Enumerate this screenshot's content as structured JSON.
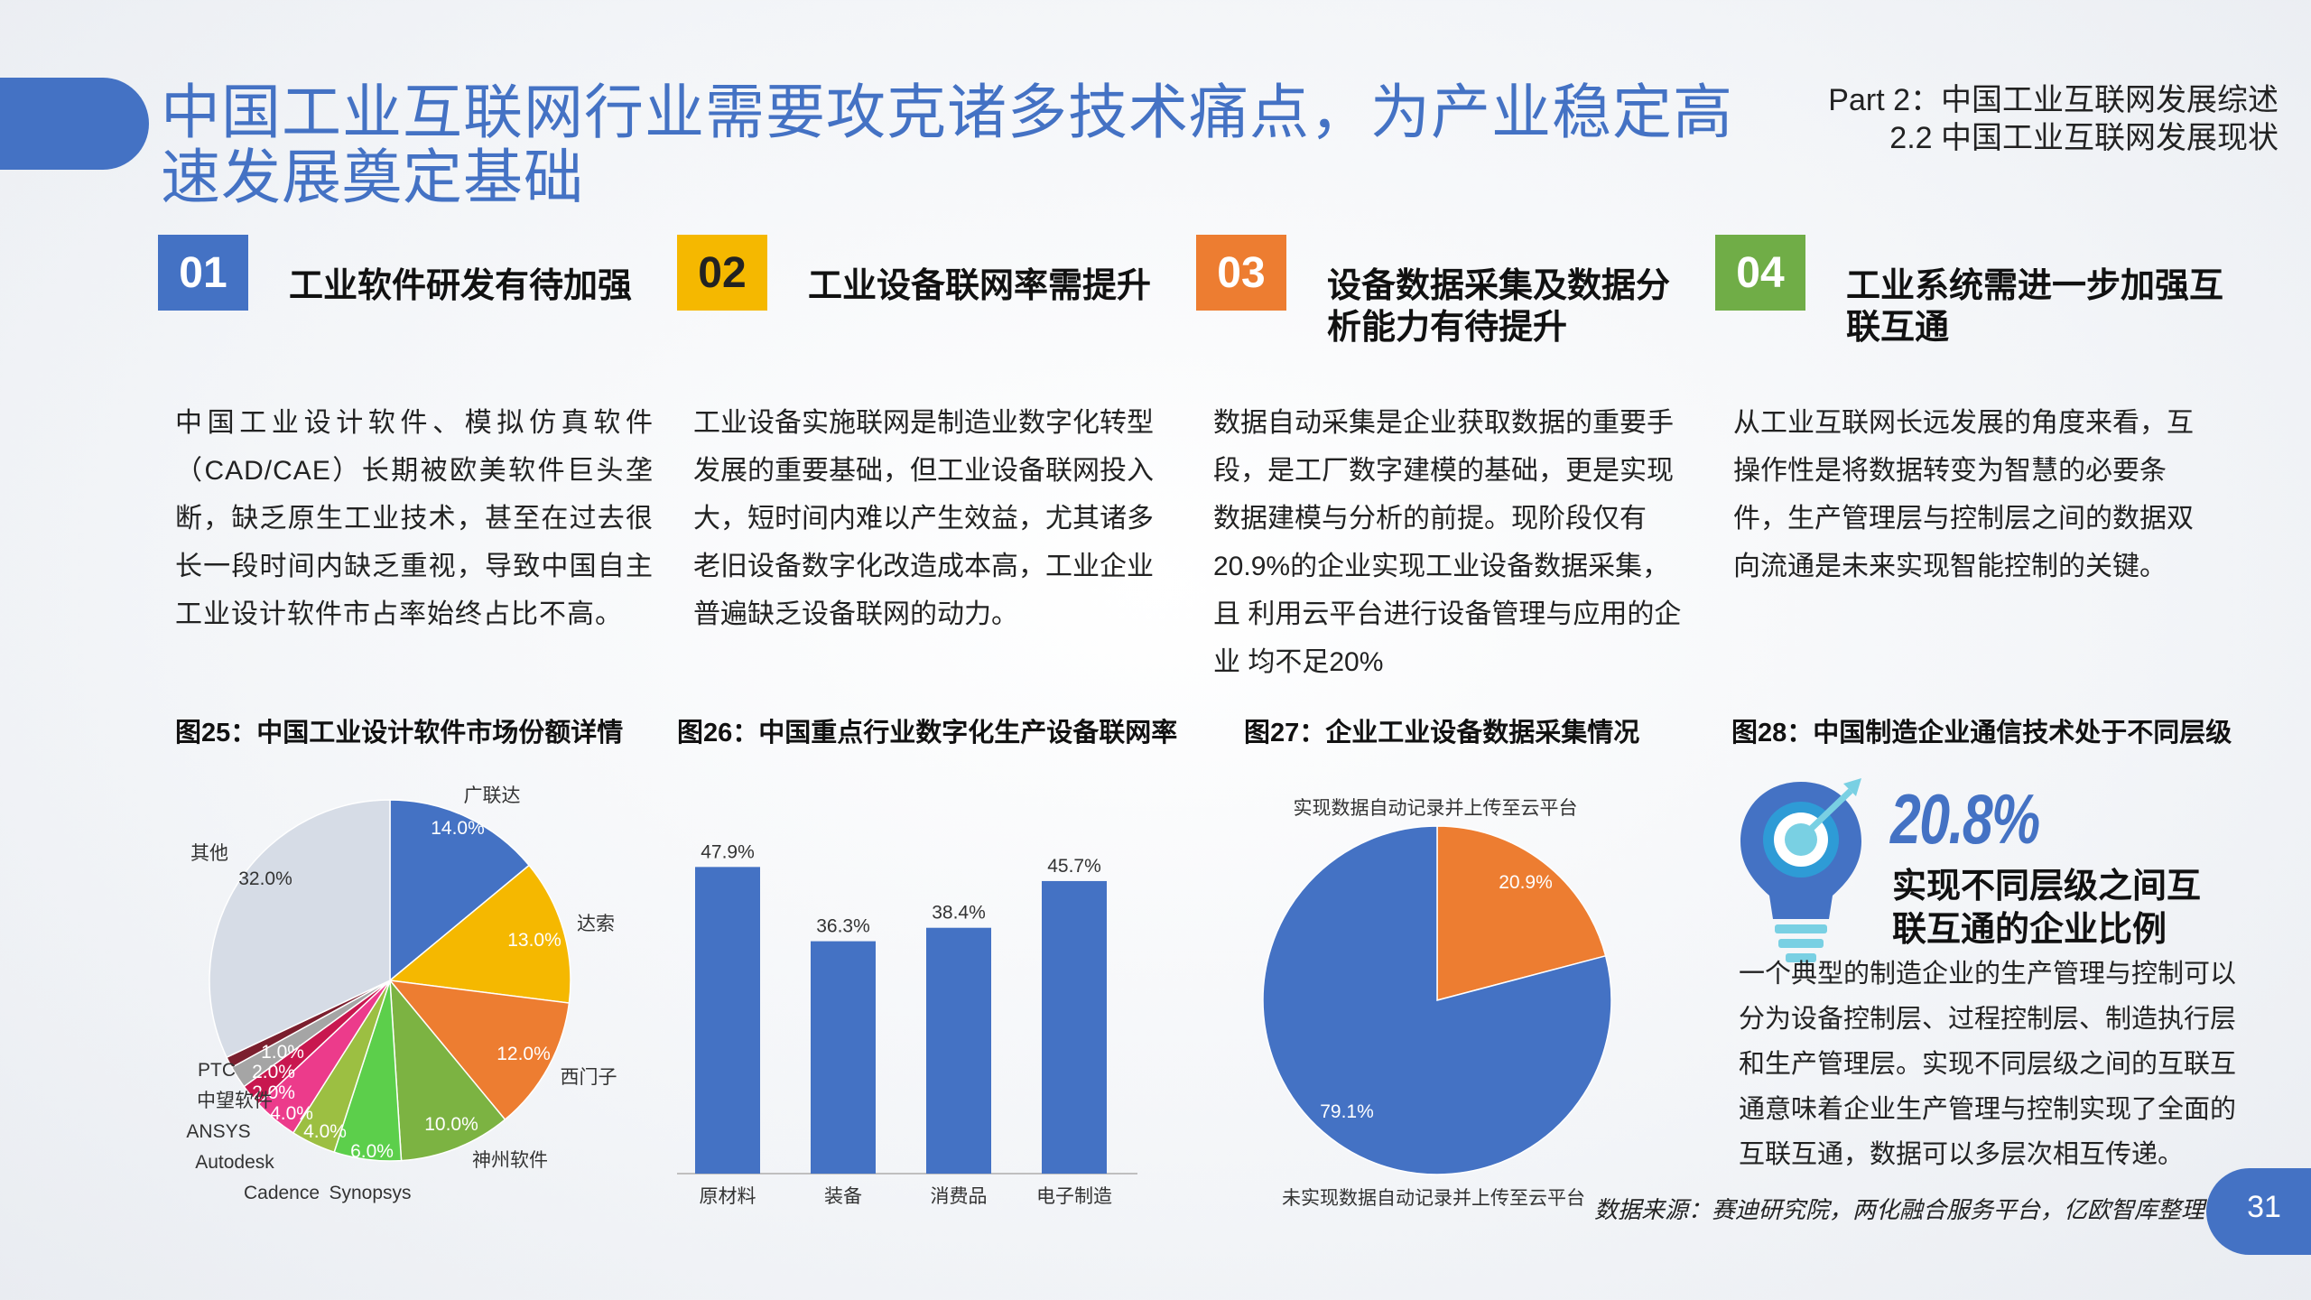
{
  "header": {
    "title": "中国工业互联网行业需要攻克诸多技术痛点，为产业稳定高速发展奠定基础",
    "part_line1": "Part 2：中国工业互联网发展综述",
    "part_line2": "2.2 中国工业互联网发展现状"
  },
  "colors": {
    "blue": "#4472c4",
    "yellow": "#f5b800",
    "orange": "#ed7d31",
    "green": "#70ad47"
  },
  "columns": [
    {
      "num": "01",
      "title": "工业软件研发有待加强",
      "text": "中国工业设计软件、模拟仿真软件（CAD/CAE）长期被欧美软件巨头垄断，缺乏原生工业技术，甚至在过去很长一段时间内缺乏重视，导致中国自主工业设计软件市占率始终占比不高。"
    },
    {
      "num": "02",
      "title": "工业设备联网率需提升",
      "text": "工业设备实施联网是制造业数字化转型发展的重要基础，但工业设备联网投入大，短时间内难以产生效益，尤其诸多老旧设备数字化改造成本高，工业企业普遍缺乏设备联网的动力。"
    },
    {
      "num": "03",
      "title": "设备数据采集及数据分析能力有待提升",
      "text": "数据自动采集是企业获取数据的重要手段，是工厂数字建模的基础，更是实现数据建模与分析的前提。现阶段仅有20.9%的企业实现工业设备数据采集，且 利用云平台进行设备管理与应用的企业 均不足20%"
    },
    {
      "num": "04",
      "title": "工业系统需进一步加强互联互通",
      "text": "从工业互联网长远发展的角度来看，互操作性是将数据转变为智慧的必要条件，生产管理层与控制层之间的数据双向流通是未来实现智能控制的关键。"
    }
  ],
  "figures": {
    "fig25_title": "图25：中国工业设计软件市场份额详情",
    "fig26_title": "图26：中国重点行业数字化生产设备联网率",
    "fig27_title": "图27：企业工业设备数据采集情况",
    "fig28_title": "图28：中国制造企业通信技术处于不同层级"
  },
  "chart_data": [
    {
      "type": "pie",
      "title": "图25：中国工业设计软件市场份额详情",
      "slices": [
        {
          "label": "广联达",
          "value": 14.0,
          "value_label": "14.0%",
          "color": "#4472c4"
        },
        {
          "label": "达索",
          "value": 13.0,
          "value_label": "13.0%",
          "color": "#f5b800"
        },
        {
          "label": "西门子",
          "value": 12.0,
          "value_label": "12.0%",
          "color": "#ed7d31"
        },
        {
          "label": "神州软件",
          "value": 10.0,
          "value_label": "10.0%",
          "color": "#7cb342"
        },
        {
          "label": "Synopsys",
          "value": 6.0,
          "value_label": "6.0%",
          "color": "#5ccf4b"
        },
        {
          "label": "Cadence",
          "value": 4.0,
          "value_label": "4.0%",
          "color": "#9cbf42"
        },
        {
          "label": "Autodesk",
          "value": 4.0,
          "value_label": "4.0%",
          "color": "#ec3b8b"
        },
        {
          "label": "ANSYS",
          "value": 2.0,
          "value_label": "2.0%",
          "color": "#c8174f"
        },
        {
          "label": "中望软件",
          "value": 2.0,
          "value_label": "2.0%",
          "color": "#a5a5a5"
        },
        {
          "label": "PTC",
          "value": 1.0,
          "value_label": "1.0%",
          "color": "#7b1f2e"
        },
        {
          "label": "其他",
          "value": 32.0,
          "value_label": "32.0%",
          "color": "#d6dce6"
        }
      ]
    },
    {
      "type": "bar",
      "title": "图26：中国重点行业数字化生产设备联网率",
      "categories": [
        "原材料",
        "装备",
        "消费品",
        "电子制造"
      ],
      "values": [
        47.9,
        36.3,
        38.4,
        45.7
      ],
      "value_labels": [
        "47.9%",
        "36.3%",
        "38.4%",
        "45.7%"
      ],
      "ylim": [
        0,
        55
      ],
      "color": "#4472c4"
    },
    {
      "type": "pie",
      "title": "图27：企业工业设备数据采集情况",
      "slices": [
        {
          "label": "实现数据自动记录并上传至云平台",
          "value": 20.9,
          "value_label": "20.9%",
          "color": "#ed7d31"
        },
        {
          "label": "未实现数据自动记录并上传至云平台",
          "value": 79.1,
          "value_label": "79.1%",
          "color": "#4472c4"
        }
      ]
    }
  ],
  "fig28": {
    "percent": "20.8%",
    "subtitle_line1": "实现不同层级之间互",
    "subtitle_line2": "联互通的企业比例",
    "text": "一个典型的制造企业的生产管理与控制可以分为设备控制层、过程控制层、制造执行层和生产管理层。实现不同层级之间的互联互通意味着企业生产管理与控制实现了全面的互联互通，数据可以多层次相互传递。",
    "icon": "lightbulb-target-icon"
  },
  "footer": {
    "source": "数据来源：赛迪研究院，两化融合服务平台，亿欧智库整理",
    "page_number": "31"
  }
}
